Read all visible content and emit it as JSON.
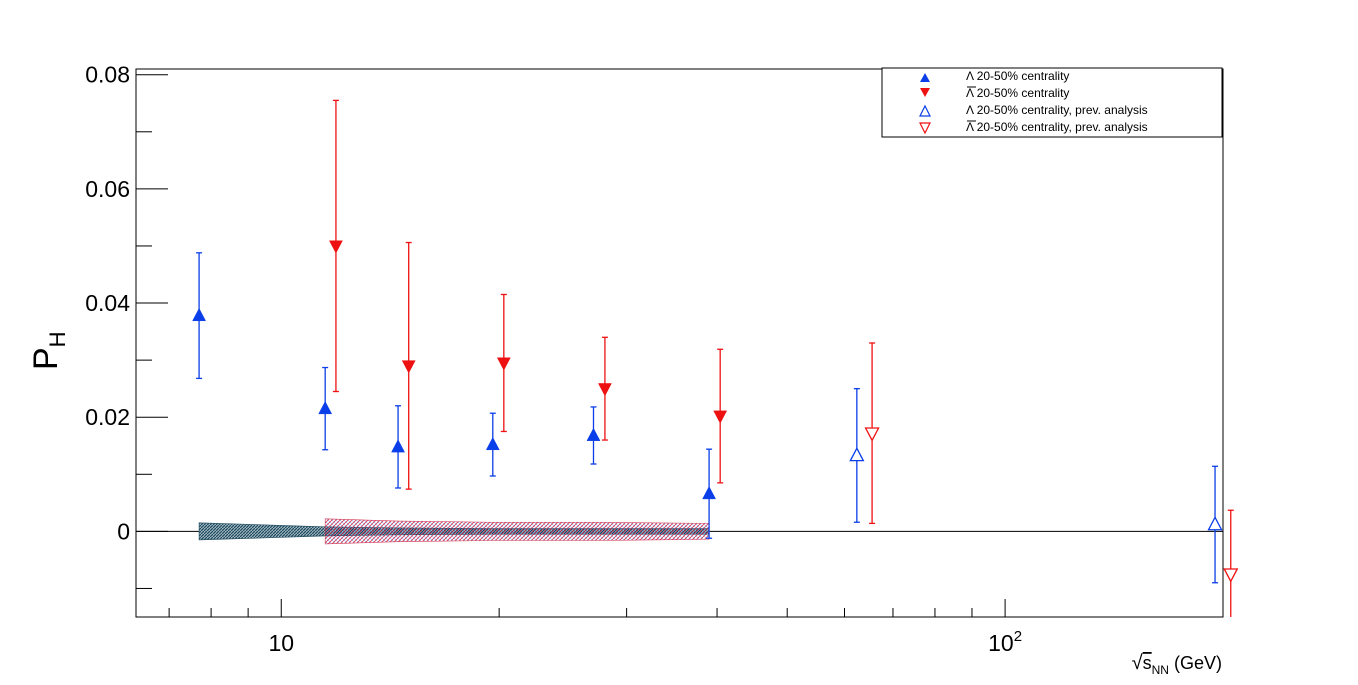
{
  "chart_data": {
    "type": "scatter",
    "title": "",
    "xlabel": "√s_NN (GeV)",
    "xlabel_parts": {
      "root": "√",
      "main": "s",
      "sub": "NN",
      "unit": " (GeV)"
    },
    "ylabel": "P_H",
    "ylabel_parts": {
      "main": "P",
      "sub": "H"
    },
    "xscale": "log",
    "xlim": [
      6.3,
      200
    ],
    "ylim": [
      -0.015,
      0.081
    ],
    "yticks": [
      0,
      0.02,
      0.04,
      0.06,
      0.08
    ],
    "ytick_labels": [
      "0",
      "0.02",
      "0.04",
      "0.06",
      "0.08"
    ],
    "xticks": [
      10,
      100
    ],
    "xtick_labels": [
      "10",
      "10^2"
    ],
    "grid": false,
    "zero_line": true,
    "legend_position": "top-right",
    "series": [
      {
        "name": "Λ 20-50% centrality",
        "color": "#0a3ee8",
        "marker": "triangle-up-filled",
        "points": [
          {
            "x": 7.7,
            "y": 0.0378,
            "err": 0.011
          },
          {
            "x": 11.5,
            "y": 0.0215,
            "err": 0.0072
          },
          {
            "x": 14.5,
            "y": 0.0148,
            "err": 0.0072
          },
          {
            "x": 19.6,
            "y": 0.0152,
            "err": 0.0055
          },
          {
            "x": 27,
            "y": 0.0168,
            "err": 0.005
          },
          {
            "x": 39,
            "y": 0.0066,
            "err": 0.0078
          }
        ]
      },
      {
        "name": "Λ̅ 20-50% centrality",
        "legend_parts": {
          "symbol": "Λ",
          "rest": " 20-50% centrality"
        },
        "color": "#ee1111",
        "marker": "triangle-down-filled",
        "points": [
          {
            "x": 11.9,
            "y": 0.05,
            "err": 0.0255
          },
          {
            "x": 15.0,
            "y": 0.029,
            "err": 0.0216
          },
          {
            "x": 20.3,
            "y": 0.0295,
            "err": 0.012
          },
          {
            "x": 28,
            "y": 0.025,
            "err": 0.009
          },
          {
            "x": 40.4,
            "y": 0.0202,
            "err": 0.0117
          }
        ]
      },
      {
        "name": "Λ 20-50% centrality, prev. analysis",
        "color": "#0a3ee8",
        "marker": "triangle-up-open",
        "points": [
          {
            "x": 62.4,
            "y": 0.0133,
            "err": 0.0117
          },
          {
            "x": 195,
            "y": 0.0012,
            "err": 0.0102
          }
        ]
      },
      {
        "name": "Λ̅ 20-50% centrality, prev. analysis",
        "legend_parts": {
          "symbol": "Λ",
          "rest": " 20-50% centrality, prev. analysis"
        },
        "color": "#ee1111",
        "marker": "triangle-down-open",
        "points": [
          {
            "x": 65.5,
            "y": 0.0172,
            "err": 0.0158
          },
          {
            "x": 205,
            "y": -0.0075,
            "err": 0.0112
          }
        ]
      }
    ],
    "systematic_bands": [
      {
        "series": "Λ 20-50% centrality",
        "color": "#1e4a5f",
        "hatch": "dense",
        "points": [
          {
            "x": 7.7,
            "half": 0.0015
          },
          {
            "x": 11.5,
            "half": 0.0008
          },
          {
            "x": 14.5,
            "half": 0.0006
          },
          {
            "x": 19.6,
            "half": 0.0005
          },
          {
            "x": 27,
            "half": 0.0005
          },
          {
            "x": 39,
            "half": 0.0005
          }
        ]
      },
      {
        "series": "Λ̅ 20-50% centrality",
        "color": "#d02040",
        "hatch": "fine",
        "points": [
          {
            "x": 11.5,
            "half": 0.0022
          },
          {
            "x": 14.5,
            "half": 0.0018
          },
          {
            "x": 19.6,
            "half": 0.0016
          },
          {
            "x": 27,
            "half": 0.0016
          },
          {
            "x": 39,
            "half": 0.0014
          }
        ]
      }
    ]
  }
}
